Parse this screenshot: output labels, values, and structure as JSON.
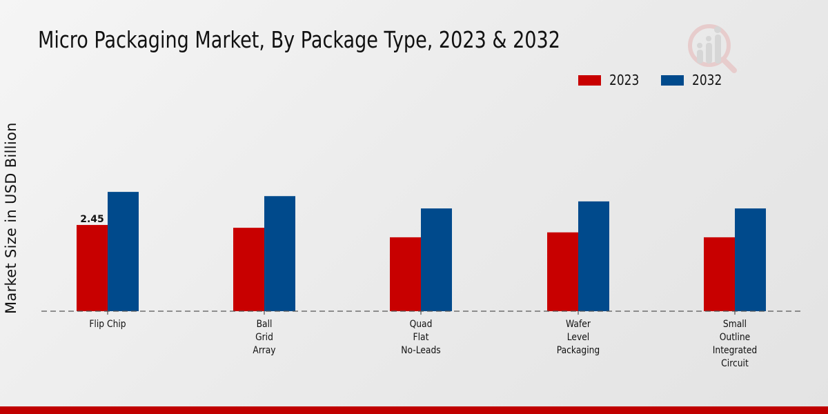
{
  "title": "Micro Packaging Market, By Package Type, 2023 & 2032",
  "logo": "market-research-logo-icon",
  "colors": {
    "series_2023": "#c80000",
    "series_2032": "#004a8c",
    "footer": "#c00000"
  },
  "chart_data": {
    "type": "bar",
    "title": "Micro Packaging Market, By Package Type, 2023 & 2032",
    "xlabel": "",
    "ylabel": "Market Size in USD Billion",
    "ylim": [
      0,
      5
    ],
    "grid": false,
    "legend_position": "top-right",
    "categories": [
      "Flip Chip",
      "Ball Grid Array",
      "Quad Flat No-Leads",
      "Wafer Level Packaging",
      "Small Outline Integrated Circuit"
    ],
    "category_lines": [
      [
        "Flip Chip"
      ],
      [
        "Ball",
        "Grid",
        "Array"
      ],
      [
        "Quad",
        "Flat",
        "No-Leads"
      ],
      [
        "Wafer",
        "Level",
        "Packaging"
      ],
      [
        "Small",
        "Outline",
        "Integrated",
        "Circuit"
      ]
    ],
    "series": [
      {
        "name": "2023",
        "color": "#c80000",
        "values": [
          2.45,
          2.37,
          2.1,
          2.24,
          2.1
        ]
      },
      {
        "name": "2032",
        "color": "#004a8c",
        "values": [
          3.39,
          3.27,
          2.92,
          3.12,
          2.92
        ]
      }
    ],
    "data_labels": [
      {
        "series": "2023",
        "category": "Flip Chip",
        "text": "2.45"
      }
    ]
  }
}
